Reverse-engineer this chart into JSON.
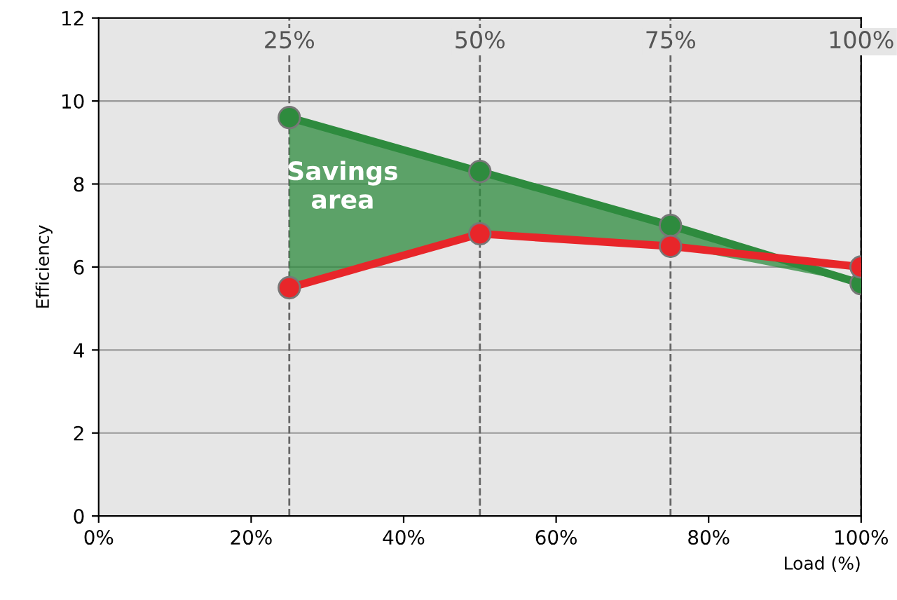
{
  "chart_data": {
    "type": "line",
    "xlabel": "Load (%)",
    "ylabel": "Efficiency",
    "x": [
      25,
      50,
      75,
      100
    ],
    "series": [
      {
        "color": "#2e8b3e",
        "values": [
          9.6,
          8.3,
          7.0,
          5.6
        ],
        "lower": [
          5.5,
          6.8,
          6.5,
          5.6
        ],
        "upper": [
          9.6,
          8.3,
          7.0,
          5.6
        ]
      },
      {
        "color": "#e8262a",
        "values": [
          5.5,
          6.8,
          6.5,
          6.0
        ]
      }
    ],
    "xlim": [
      0,
      100
    ],
    "xticks": [
      {
        "value": 0,
        "label": "0%"
      },
      {
        "value": 20,
        "label": "20%"
      },
      {
        "value": 40,
        "label": "40%"
      },
      {
        "value": 60,
        "label": "60%"
      },
      {
        "value": 80,
        "label": "80%"
      },
      {
        "value": 100,
        "label": "100%"
      }
    ],
    "ylim": [
      0,
      12
    ],
    "yticks": [
      0,
      2,
      4,
      6,
      8,
      10,
      12
    ],
    "ref_lines": [
      {
        "axis": "x",
        "value": 25,
        "label": "25%",
        "line_style": "dashed"
      },
      {
        "axis": "x",
        "value": 50,
        "label": "50%",
        "line_style": "dashed"
      },
      {
        "axis": "x",
        "value": 75,
        "label": "75%",
        "line_style": "dashed"
      },
      {
        "axis": "x",
        "value": 100,
        "label": "100%",
        "line_style": "dashed"
      }
    ],
    "annotations": [
      "Savings\narea"
    ],
    "grid": "y",
    "marker": "circle",
    "legend": false
  }
}
